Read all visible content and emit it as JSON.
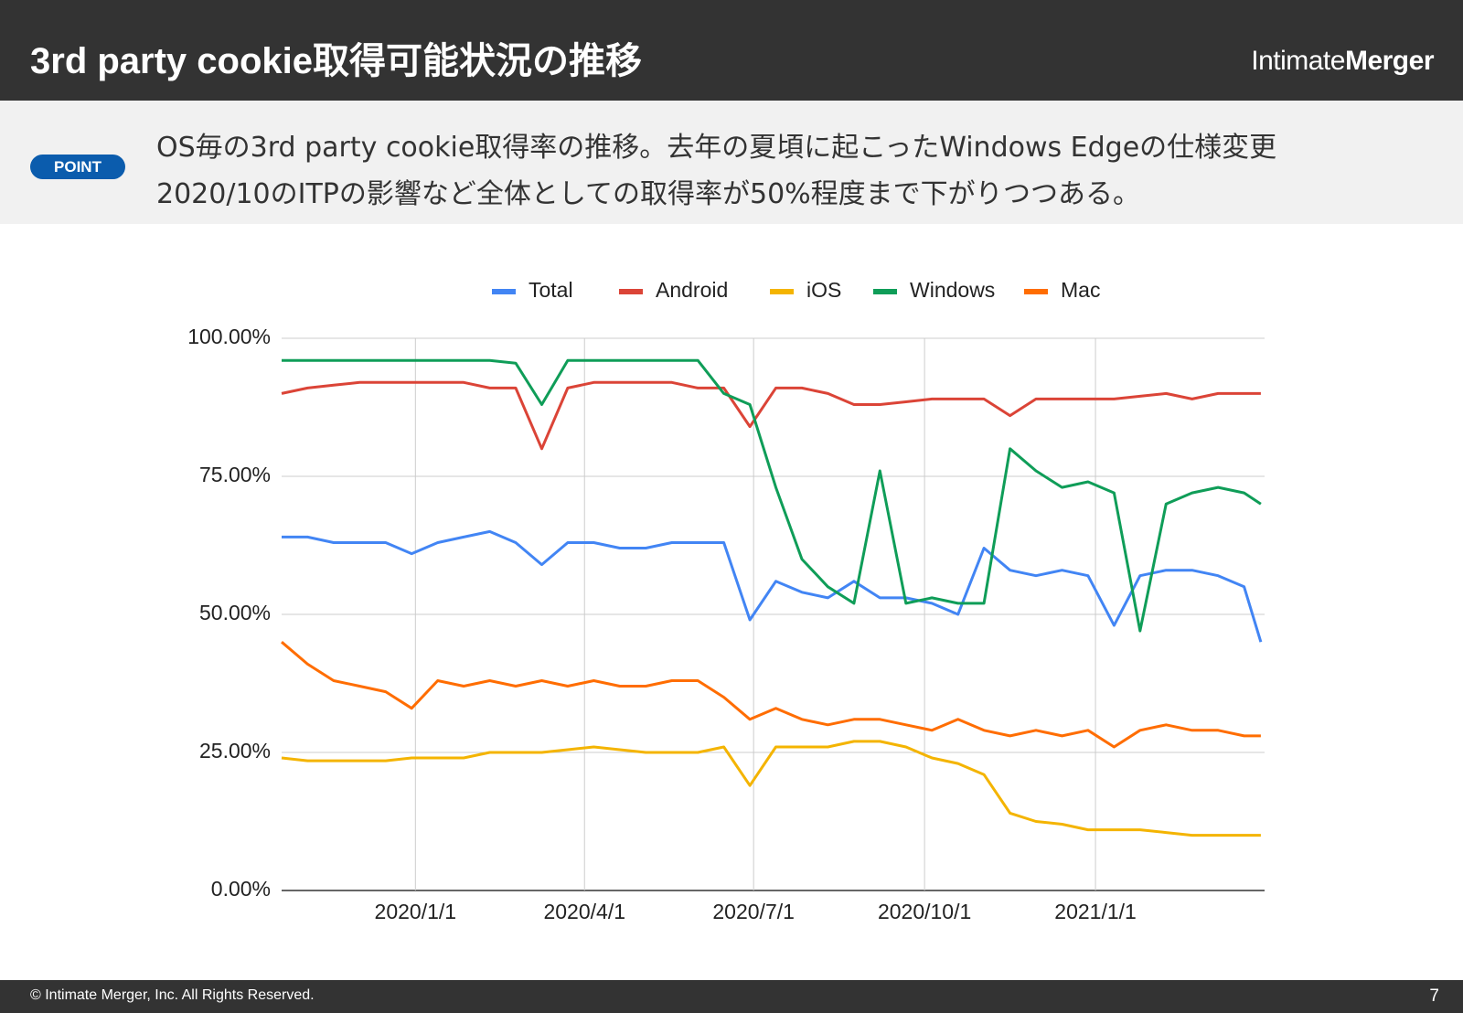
{
  "header": {
    "title": "3rd party cookie取得可能状況の推移",
    "logo_light": "Intimate",
    "logo_bold": "Merger"
  },
  "point": {
    "badge": "POINT",
    "lines": [
      "OS毎の3rd party cookie取得率の推移。去年の夏頃に起こったWindows Edgeの仕様変更",
      "2020/10のITPの影響など全体としての取得率が50%程度まで下がりつつある。"
    ]
  },
  "footer": {
    "copyright": "© Intimate Merger, Inc. All Rights Reserved.",
    "page": "7"
  },
  "chart_data": {
    "type": "line",
    "x": [
      "2019/10/21",
      "2019/11/4",
      "2019/11/18",
      "2019/12/2",
      "2019/12/16",
      "2019/12/30",
      "2020/1/13",
      "2020/1/27",
      "2020/2/10",
      "2020/2/24",
      "2020/3/9",
      "2020/3/23",
      "2020/4/6",
      "2020/4/20",
      "2020/5/4",
      "2020/5/18",
      "2020/6/1",
      "2020/6/15",
      "2020/6/29",
      "2020/7/13",
      "2020/7/27",
      "2020/8/10",
      "2020/8/24",
      "2020/9/7",
      "2020/9/21",
      "2020/10/5",
      "2020/10/19",
      "2020/11/2",
      "2020/11/16",
      "2020/11/30",
      "2020/12/14",
      "2020/12/28",
      "2021/1/11",
      "2021/1/25",
      "2021/2/8",
      "2021/2/22",
      "2021/3/8",
      "2021/3/22",
      "2021/3/31"
    ],
    "series": [
      {
        "name": "Total",
        "color": "#4285f4",
        "values": [
          64,
          64,
          63,
          63,
          63,
          61,
          63,
          64,
          65,
          63,
          59,
          63,
          63,
          62,
          62,
          63,
          63,
          63,
          49,
          56,
          54,
          53,
          56,
          53,
          53,
          52,
          50,
          62,
          58,
          57,
          58,
          57,
          48,
          57,
          58,
          58,
          57,
          55,
          45
        ]
      },
      {
        "name": "Android",
        "color": "#db4437",
        "values": [
          90,
          91,
          91.5,
          92,
          92,
          92,
          92,
          92,
          91,
          91,
          80,
          91,
          92,
          92,
          92,
          92,
          91,
          91,
          84,
          91,
          91,
          90,
          88,
          88,
          88.5,
          89,
          89,
          89,
          86,
          89,
          89,
          89,
          89,
          89.5,
          90,
          89,
          90,
          90,
          90
        ]
      },
      {
        "name": "iOS",
        "color": "#f4b400",
        "values": [
          24,
          23.5,
          23.5,
          23.5,
          23.5,
          24,
          24,
          24,
          25,
          25,
          25,
          25.5,
          26,
          25.5,
          25,
          25,
          25,
          26,
          19,
          26,
          26,
          26,
          27,
          27,
          26,
          24,
          23,
          21,
          14,
          12.5,
          12,
          11,
          11,
          11,
          10.5,
          10,
          10,
          10,
          10
        ]
      },
      {
        "name": "Windows",
        "color": "#0f9d58",
        "values": [
          96,
          96,
          96,
          96,
          96,
          96,
          96,
          96,
          96,
          95.5,
          88,
          96,
          96,
          96,
          96,
          96,
          96,
          90,
          88,
          73,
          60,
          55,
          52,
          76,
          52,
          53,
          52,
          52,
          80,
          76,
          73,
          74,
          72,
          47,
          70,
          72,
          73,
          72,
          70
        ]
      },
      {
        "name": "Mac",
        "color": "#ff6d01",
        "values": [
          45,
          41,
          38,
          37,
          36,
          33,
          38,
          37,
          38,
          37,
          38,
          37,
          38,
          37,
          37,
          38,
          38,
          35,
          31,
          33,
          31,
          30,
          31,
          31,
          30,
          29,
          31,
          29,
          28,
          29,
          28,
          29,
          26,
          29,
          30,
          29,
          29,
          28,
          28
        ]
      }
    ],
    "xlim": [
      "2019/10/21",
      "2021/4/2"
    ],
    "xticks": [
      "2020/1/1",
      "2020/4/1",
      "2020/7/1",
      "2020/10/1",
      "2021/1/1"
    ],
    "ylim": [
      0,
      100
    ],
    "yticks": [
      {
        "value": 0,
        "label": "0.00%"
      },
      {
        "value": 25,
        "label": "25.00%"
      },
      {
        "value": 50,
        "label": "50.00%"
      },
      {
        "value": 75,
        "label": "75.00%"
      },
      {
        "value": 100,
        "label": "100.00%"
      }
    ],
    "grid": true,
    "legend": "top"
  }
}
